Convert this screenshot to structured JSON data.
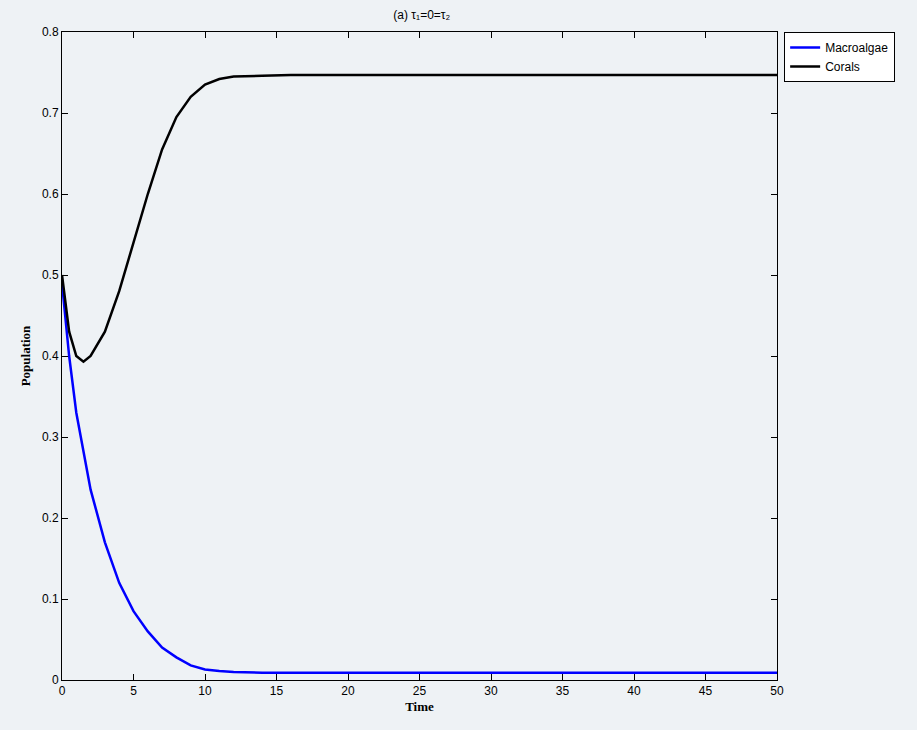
{
  "chart_data": {
    "type": "line",
    "title": "(a) τ₁=0=τ₂",
    "x_label": "Time",
    "y_label": "Population",
    "x": [
      0,
      0.5,
      1,
      1.5,
      2,
      3,
      4,
      5,
      6,
      7,
      8,
      9,
      10,
      11,
      12,
      14,
      16,
      20,
      25,
      30,
      35,
      40,
      45,
      50
    ],
    "series": [
      {
        "name": "Macroalgae",
        "color": "#0000ff",
        "values": [
          0.49,
          0.4,
          0.33,
          0.28,
          0.235,
          0.17,
          0.12,
          0.085,
          0.06,
          0.04,
          0.028,
          0.018,
          0.013,
          0.011,
          0.01,
          0.009,
          0.009,
          0.009,
          0.009,
          0.009,
          0.009,
          0.009,
          0.009,
          0.009
        ]
      },
      {
        "name": "Corals",
        "color": "#000000",
        "values": [
          0.5,
          0.43,
          0.4,
          0.393,
          0.4,
          0.43,
          0.48,
          0.54,
          0.6,
          0.655,
          0.695,
          0.72,
          0.735,
          0.742,
          0.745,
          0.746,
          0.747,
          0.747,
          0.747,
          0.747,
          0.747,
          0.747,
          0.747,
          0.747
        ]
      }
    ],
    "xlim": [
      0,
      50
    ],
    "ylim": [
      0,
      0.8
    ],
    "xticks": [
      0,
      5,
      10,
      15,
      20,
      25,
      30,
      35,
      40,
      45,
      50
    ],
    "yticks": [
      0,
      0.1,
      0.2,
      0.3,
      0.4,
      0.5,
      0.6,
      0.7,
      0.8
    ],
    "grid": false,
    "legend": "right"
  }
}
